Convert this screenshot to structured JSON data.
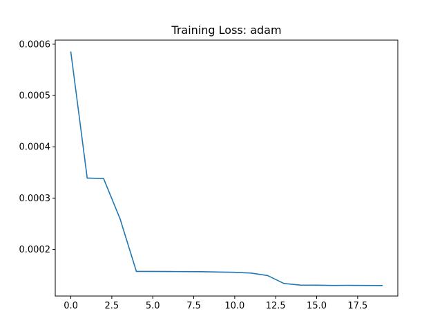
{
  "chart_data": {
    "type": "line",
    "title": "Training Loss: adam",
    "xlabel": "",
    "ylabel": "",
    "xlim": [
      -0.95,
      19.95
    ],
    "ylim": [
      0.000109,
      0.000608
    ],
    "x_ticks": [
      0,
      2.5,
      5,
      7.5,
      10,
      12.5,
      15,
      17.5
    ],
    "x_tick_labels": [
      "0.0",
      "2.5",
      "5.0",
      "7.5",
      "10.0",
      "12.5",
      "15.0",
      "17.5"
    ],
    "y_ticks": [
      0.0002,
      0.0003,
      0.0004,
      0.0005,
      0.0006
    ],
    "y_tick_labels": [
      "0.0002",
      "0.0003",
      "0.0004",
      "0.0005",
      "0.0006"
    ],
    "grid": false,
    "series": [
      {
        "color": "#1f77b4",
        "x": [
          0,
          1,
          2,
          3,
          4,
          5,
          6,
          7,
          8,
          9,
          10,
          11,
          12,
          13,
          14,
          15,
          16,
          17,
          18,
          19
        ],
        "values": [
          0.000585,
          0.000339,
          0.000338,
          0.00026,
          0.000157,
          0.000157,
          0.0001568,
          0.0001566,
          0.0001565,
          0.0001558,
          0.0001553,
          0.0001538,
          0.000149,
          0.0001335,
          0.0001303,
          0.0001301,
          0.0001296,
          0.0001299,
          0.0001296,
          0.0001295
        ]
      }
    ]
  }
}
